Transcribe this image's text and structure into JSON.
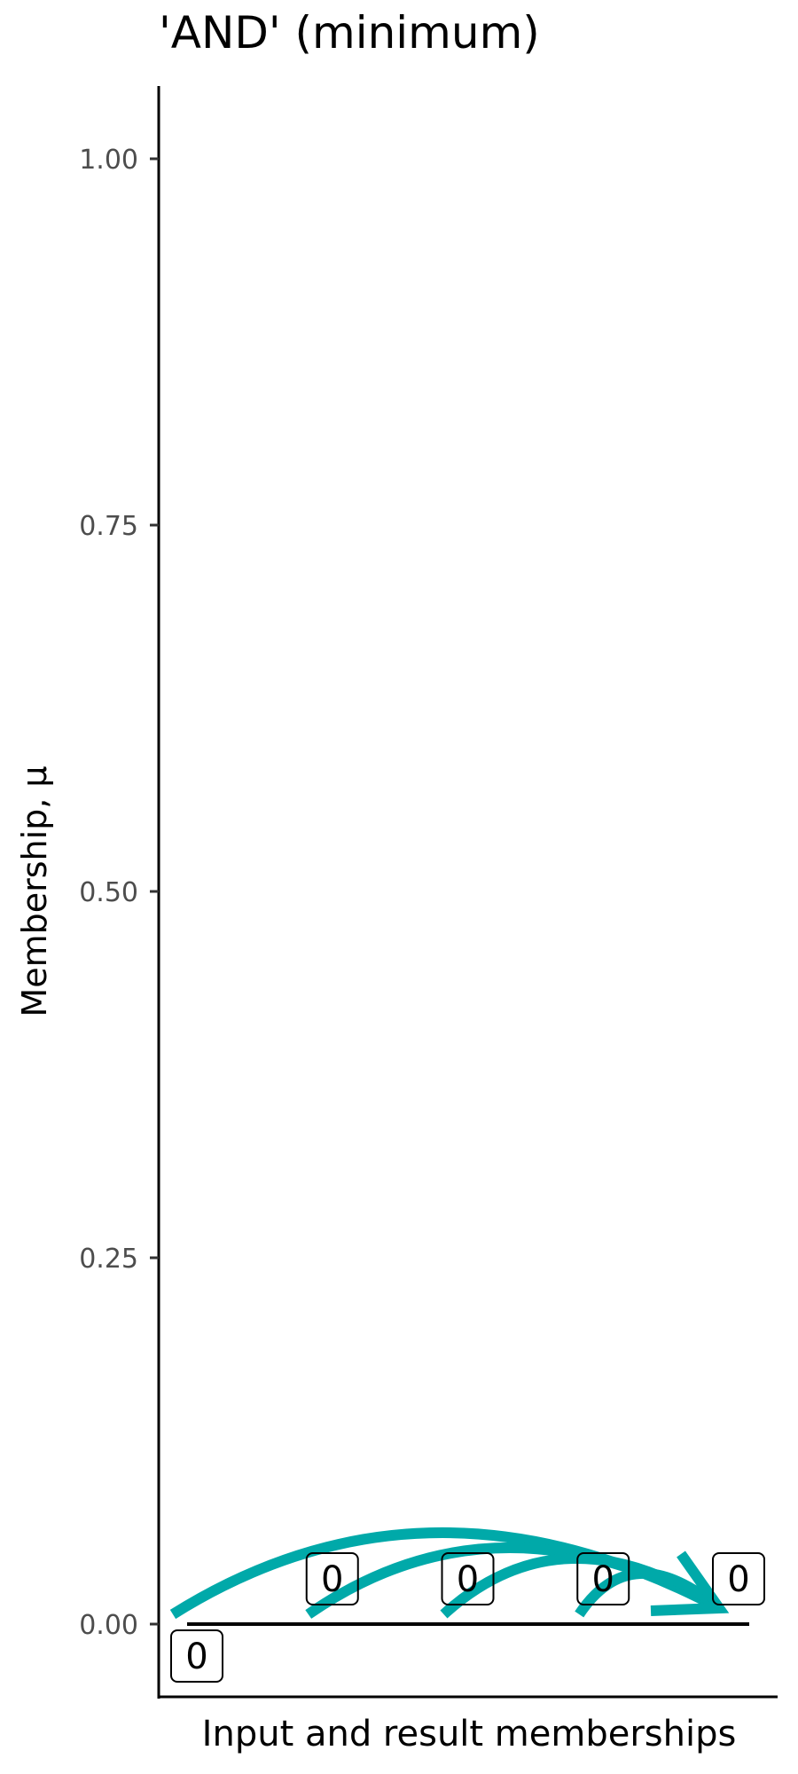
{
  "chart_data": {
    "type": "scatter",
    "title": "'AND' (minimum)",
    "xlabel": "Input and result memberships",
    "ylabel": "Membership, μ",
    "ylim": [
      -0.05,
      1.05
    ],
    "yticks": [
      "0.00",
      "0.25",
      "0.50",
      "0.75",
      "1.00"
    ],
    "ytick_values": [
      0,
      0.25,
      0.5,
      0.75,
      1
    ],
    "grid": false,
    "inputs": [
      {
        "x": 1,
        "y": 0,
        "label": "0"
      },
      {
        "x": 2,
        "y": 0,
        "label": "0"
      },
      {
        "x": 3,
        "y": 0,
        "label": "0"
      },
      {
        "x": 4,
        "y": 0,
        "label": "0"
      }
    ],
    "result": {
      "x": 5,
      "y": 0,
      "label": "0"
    },
    "arrow_color": "#00A9A9",
    "line_color": "#000000"
  }
}
